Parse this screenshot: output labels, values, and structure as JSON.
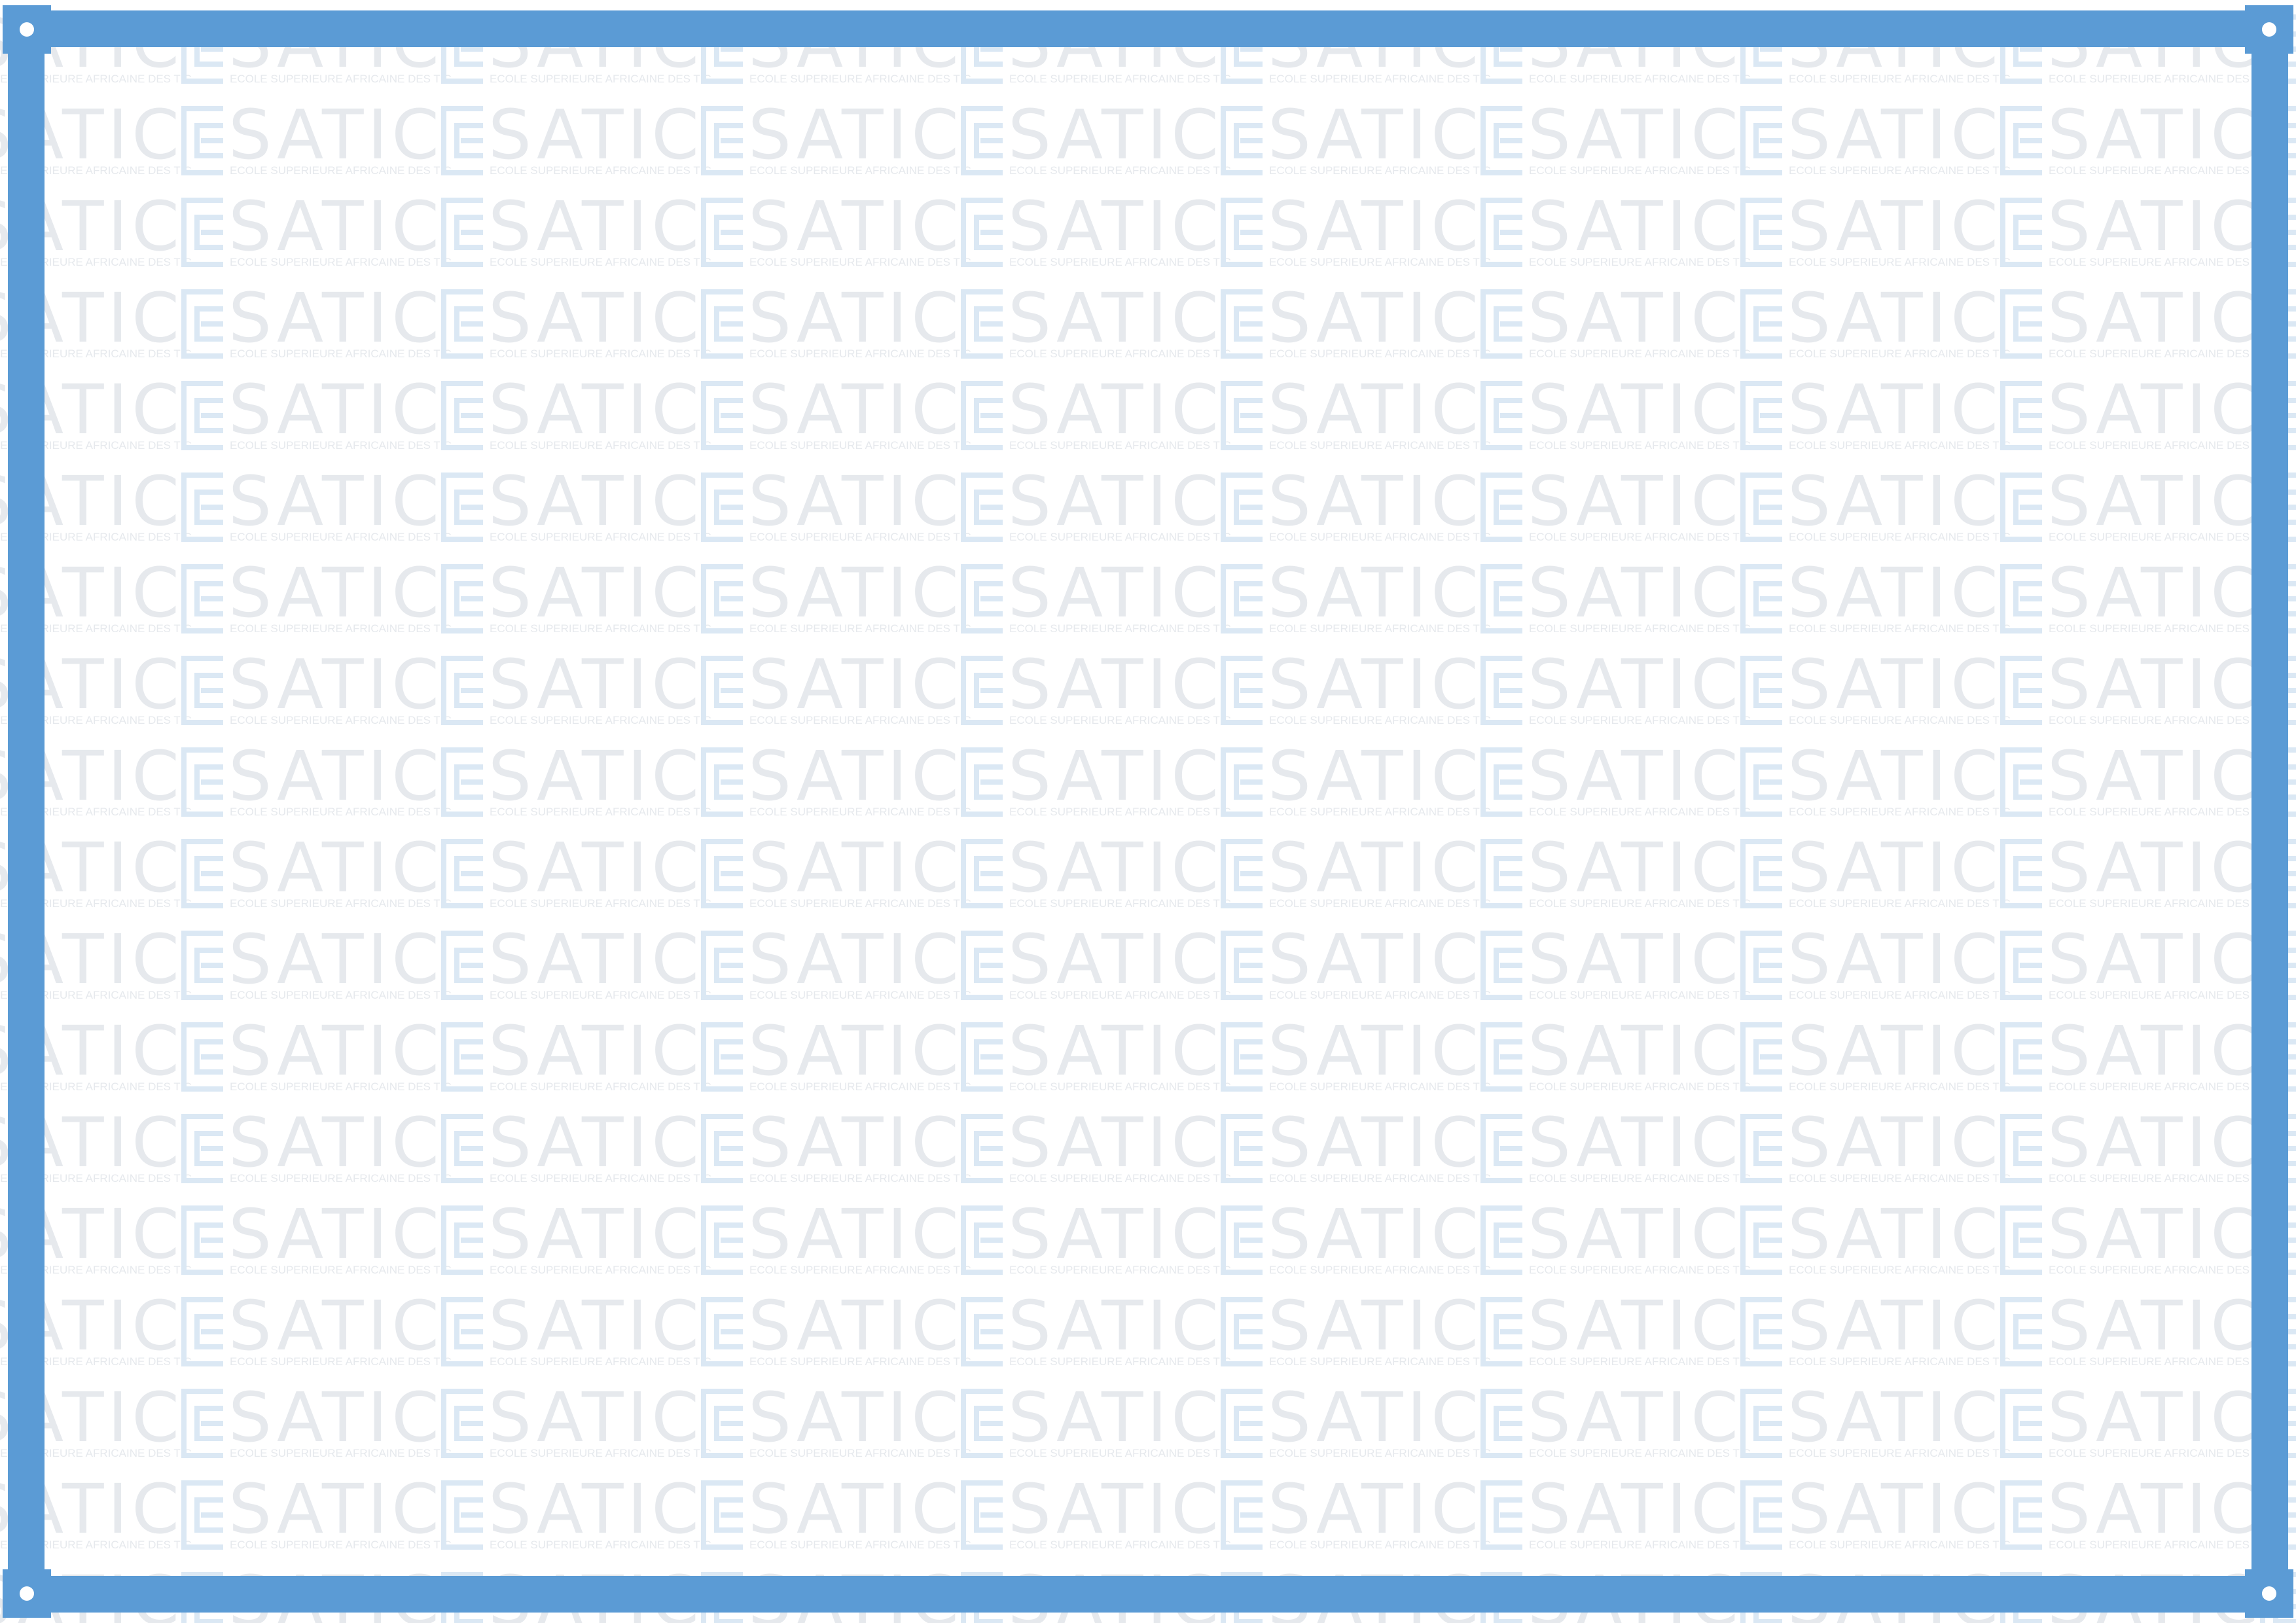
{
  "watermark": {
    "wordmark": "SATIC",
    "tagline": "ECOLE SUPERIEURE AFRICAINE DES TIC",
    "logo_icon": "esatic-e-logo-icon",
    "text_color": "#e6e9ed",
    "logo_color": "#dbe8f4"
  },
  "frame": {
    "color": "#5b9bd5",
    "corner_icon": "mounting-hole-icon"
  },
  "page": {
    "background": "#ffffff"
  }
}
